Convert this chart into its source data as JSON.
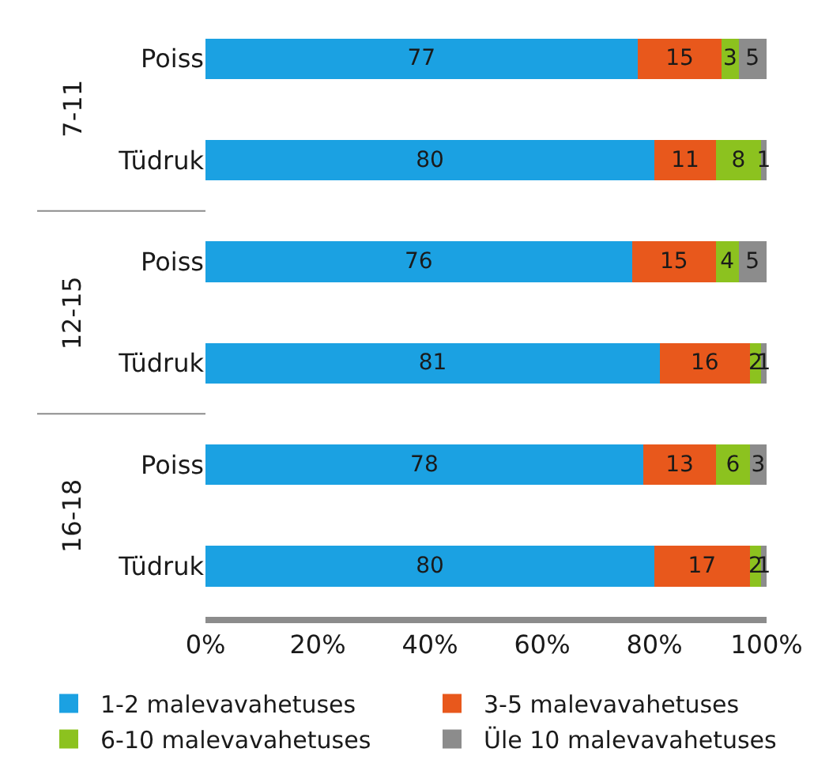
{
  "chart_data": {
    "type": "bar",
    "orientation": "horizontal",
    "stacked": true,
    "data_labels": true,
    "categories": [
      "Poiss",
      "Tüdruk",
      "Poiss",
      "Tüdruk",
      "Poiss",
      "Tüdruk"
    ],
    "series": [
      {
        "name": "1-2 malevavahetuses",
        "color": "#1ba1e2",
        "values": [
          77,
          80,
          76,
          81,
          78,
          80
        ]
      },
      {
        "name": "3-5 malevavahetuses",
        "color": "#e8581c",
        "values": [
          15,
          11,
          15,
          16,
          13,
          17
        ]
      },
      {
        "name": "6-10 malevavahetuses",
        "color": "#8cc21f",
        "values": [
          3,
          8,
          4,
          2,
          6,
          2
        ]
      },
      {
        "name": "Üle 10 malevavahetuses",
        "color": "#8c8c8c",
        "values": [
          5,
          1,
          5,
          1,
          3,
          1
        ]
      }
    ],
    "annotations": [
      "7-11",
      "12-15",
      "16-18"
    ],
    "xlim": [
      0,
      100
    ],
    "xticks": [
      {
        "value": 0,
        "label": "0%"
      },
      {
        "value": 20,
        "label": "20%"
      },
      {
        "value": 40,
        "label": "40%"
      },
      {
        "value": 60,
        "label": "60%"
      },
      {
        "value": 80,
        "label": "80%"
      },
      {
        "value": 100,
        "label": "100%"
      }
    ],
    "legend": "bottom"
  }
}
